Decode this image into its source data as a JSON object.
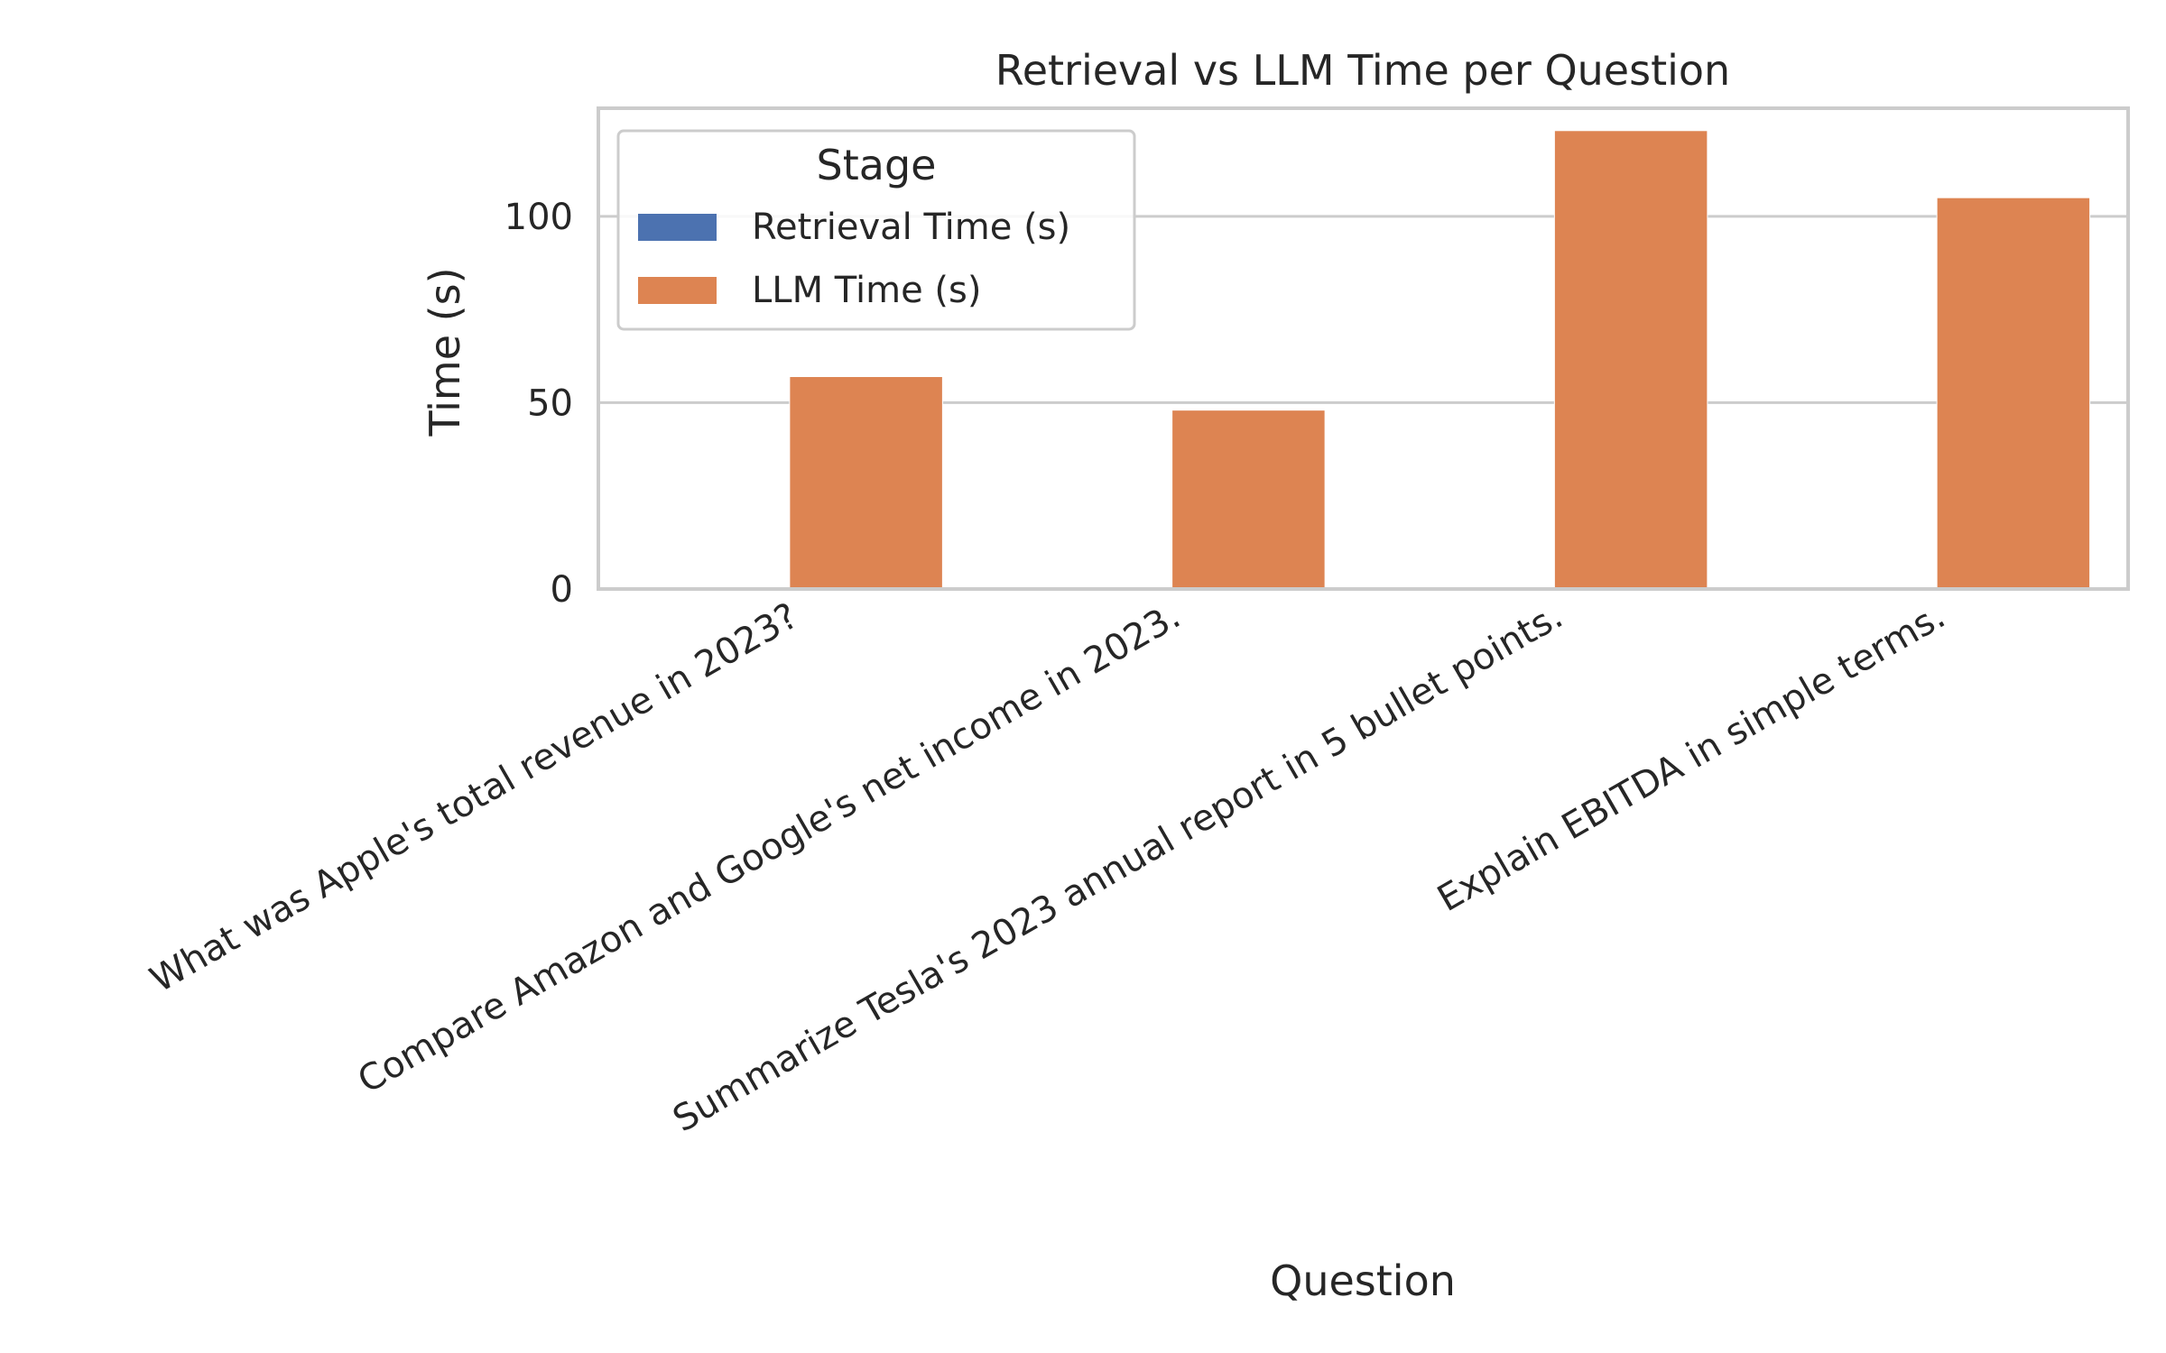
{
  "chart_data": {
    "type": "bar",
    "title": "Retrieval vs LLM Time per Question",
    "xlabel": "Question",
    "ylabel": "Time (s)",
    "categories": [
      "What was Apple's total revenue in 2023?",
      "Compare Amazon and Google's net income in 2023.",
      "Summarize Tesla's 2023 annual report in 5 bullet points.",
      "Explain EBITDA in simple terms."
    ],
    "series": [
      {
        "name": "Retrieval Time (s)",
        "color": "#4c72b0",
        "values": [
          0.1,
          0.1,
          0.1,
          0.1
        ]
      },
      {
        "name": "LLM Time (s)",
        "color": "#dd8452",
        "values": [
          57,
          48,
          123,
          105
        ]
      }
    ],
    "ylim": [
      0,
      129
    ],
    "yticks": [
      0,
      50,
      100
    ],
    "grid": true,
    "legend": {
      "title": "Stage",
      "placement": "top-left"
    }
  }
}
